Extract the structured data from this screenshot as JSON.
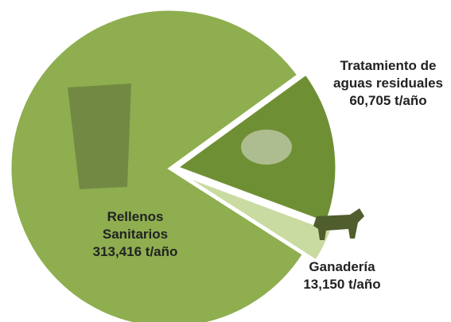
{
  "chart_data": {
    "type": "pie",
    "categories": [
      "Tratamiento de aguas residuales",
      "Ganadería",
      "Rellenos Sanitarios"
    ],
    "values": [
      60705,
      13150,
      313416
    ],
    "value_labels": [
      "60,705 t/año",
      "13,150 t/año",
      "313,416 t/año"
    ],
    "colors": [
      "#6f8f35",
      "#c9dba0",
      "#8eae4f"
    ]
  }
}
